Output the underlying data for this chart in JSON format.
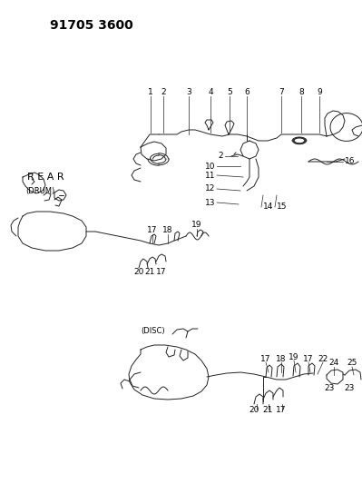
{
  "title": "91705 3600",
  "bg_color": "#ffffff",
  "text_color": "#000000",
  "line_color": "#222222",
  "title_fontsize": 10,
  "label_fontsize": 6.5,
  "rear_label": "R E A R",
  "drum_label": "(DRUM)",
  "disc_label": "(DISC)"
}
